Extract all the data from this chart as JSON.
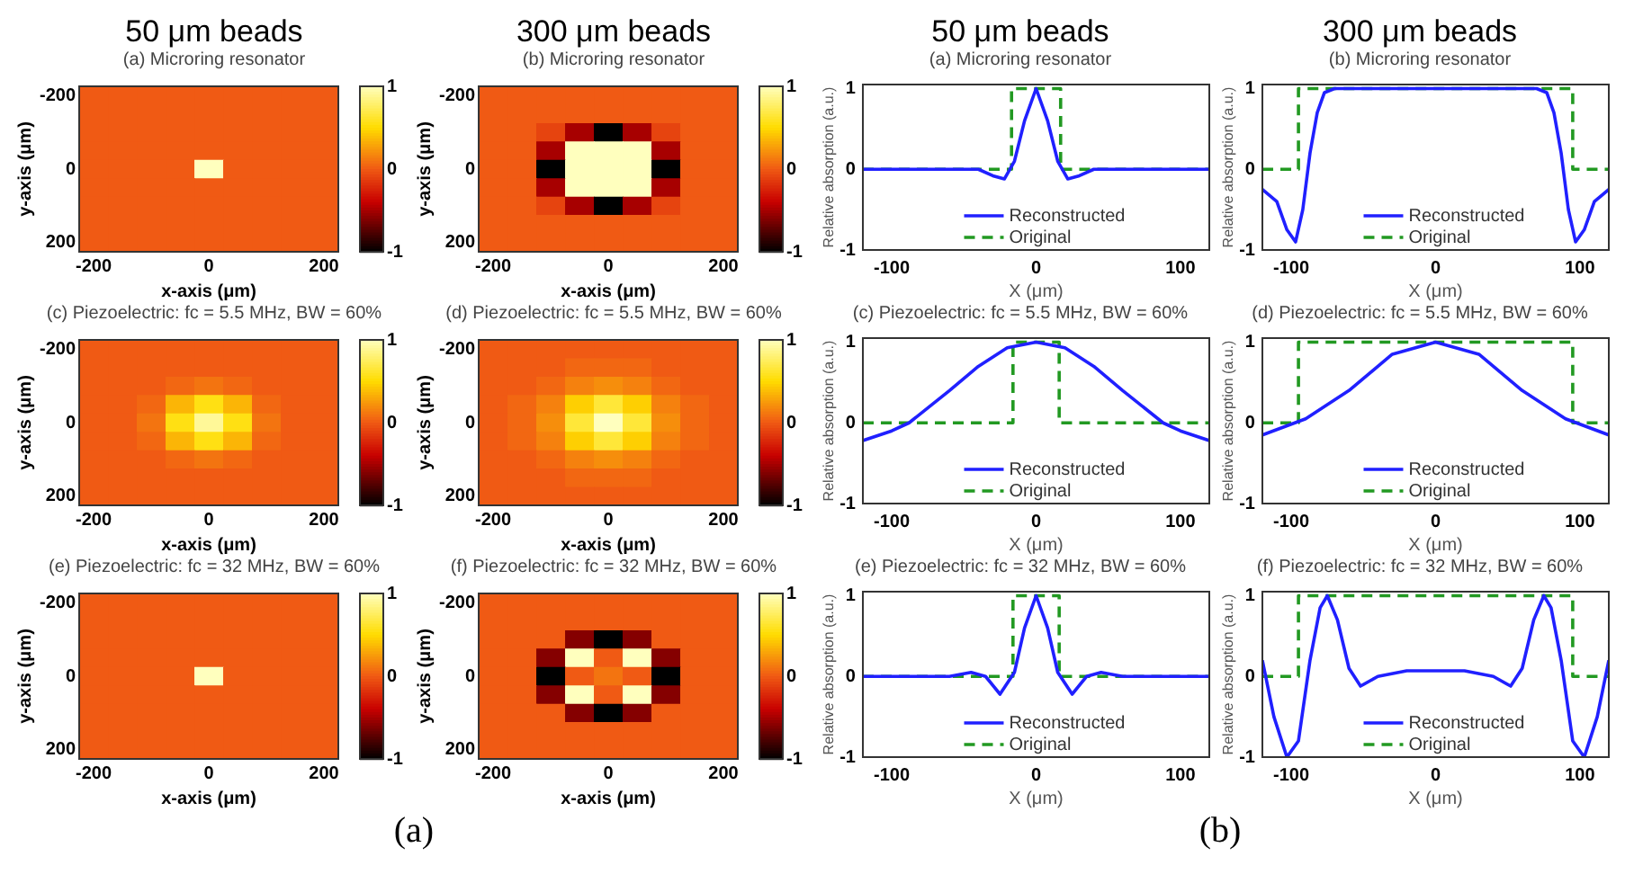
{
  "chart_data": [
    {
      "type": "heatmap",
      "title": "50 μm beads",
      "subtitle": "(a) Microring resonator",
      "xlabel": "x-axis (μm)",
      "ylabel": "y-axis (μm)",
      "categories": [
        "-200",
        null,
        null,
        null,
        "0",
        null,
        null,
        null,
        "200"
      ],
      "y_categories": [
        "-200",
        null,
        null,
        null,
        "0",
        null,
        null,
        null,
        "200"
      ],
      "clim": [
        -1,
        1
      ],
      "cticks": [
        -1,
        0,
        1
      ],
      "cells": [
        [
          0,
          0,
          0,
          0,
          0,
          0,
          0,
          0,
          0
        ],
        [
          0,
          0,
          0,
          0,
          0,
          0,
          0,
          0,
          0
        ],
        [
          0,
          0,
          0,
          0,
          0,
          0,
          0,
          0,
          0
        ],
        [
          0,
          0,
          0,
          0,
          0,
          0,
          0,
          0,
          0
        ],
        [
          0,
          0,
          0,
          0,
          1,
          0,
          0,
          0,
          0
        ],
        [
          0,
          0,
          0,
          0,
          0,
          0,
          0,
          0,
          0
        ],
        [
          0,
          0,
          0,
          0,
          0,
          0,
          0,
          0,
          0
        ],
        [
          0,
          0,
          0,
          0,
          0,
          0,
          0,
          0,
          0
        ],
        [
          0,
          0,
          0,
          0,
          0,
          0,
          0,
          0,
          0
        ]
      ]
    },
    {
      "type": "heatmap",
      "title": "300 μm beads",
      "subtitle": "(b) Microring resonator",
      "xlabel": "x-axis (μm)",
      "ylabel": "y-axis (μm)",
      "categories": [
        "-200",
        null,
        null,
        null,
        "0",
        null,
        null,
        null,
        "200"
      ],
      "y_categories": [
        "-200",
        null,
        null,
        null,
        "0",
        null,
        null,
        null,
        "200"
      ],
      "clim": [
        -1,
        1
      ],
      "cticks": [
        -1,
        0,
        1
      ],
      "cells": [
        [
          0,
          0,
          0,
          0,
          0,
          0,
          0,
          0,
          0
        ],
        [
          0,
          0,
          0,
          0,
          0,
          0,
          0,
          0,
          0
        ],
        [
          0,
          0,
          -0.1,
          -0.5,
          -1,
          -0.5,
          -0.1,
          0,
          0
        ],
        [
          0,
          0,
          -0.5,
          1,
          1,
          1,
          -0.5,
          0,
          0
        ],
        [
          0,
          0,
          -1,
          1,
          1,
          1,
          -1,
          0,
          0
        ],
        [
          0,
          0,
          -0.5,
          1,
          1,
          1,
          -0.5,
          0,
          0
        ],
        [
          0,
          0,
          -0.1,
          -0.5,
          -1,
          -0.5,
          -0.1,
          0,
          0
        ],
        [
          0,
          0,
          0,
          0,
          0,
          0,
          0,
          0,
          0
        ],
        [
          0,
          0,
          0,
          0,
          0,
          0,
          0,
          0,
          0
        ]
      ]
    },
    {
      "type": "heatmap",
      "title": "(c) Piezoelectric: fc = 5.5 MHz, BW = 60%",
      "xlabel": "x-axis (μm)",
      "ylabel": "y-axis (μm)",
      "categories": [
        "-200",
        null,
        null,
        null,
        "0",
        null,
        null,
        null,
        "200"
      ],
      "y_categories": [
        "-200",
        null,
        null,
        null,
        "0",
        null,
        null,
        null,
        "200"
      ],
      "clim": [
        -1,
        1
      ],
      "cticks": [
        -1,
        0,
        1
      ],
      "cells": [
        [
          0,
          0,
          0,
          0,
          0,
          0,
          0,
          0,
          0
        ],
        [
          0,
          0,
          0,
          0,
          0,
          0,
          0,
          0,
          0
        ],
        [
          0,
          0,
          0,
          0.05,
          0.1,
          0.05,
          0,
          0,
          0
        ],
        [
          0,
          0,
          0.05,
          0.35,
          0.55,
          0.35,
          0.05,
          0,
          0
        ],
        [
          0,
          0,
          0.1,
          0.55,
          0.9,
          0.55,
          0.1,
          0,
          0
        ],
        [
          0,
          0,
          0.05,
          0.35,
          0.55,
          0.35,
          0.05,
          0,
          0
        ],
        [
          0,
          0,
          0,
          0.05,
          0.1,
          0.05,
          0,
          0,
          0
        ],
        [
          0,
          0,
          0,
          0,
          0,
          0,
          0,
          0,
          0
        ],
        [
          0,
          0,
          0,
          0,
          0,
          0,
          0,
          0,
          0
        ]
      ]
    },
    {
      "type": "heatmap",
      "title": "(d) Piezoelectric: fc = 5.5 MHz, BW = 60%",
      "xlabel": "x-axis (μm)",
      "ylabel": "y-axis (μm)",
      "categories": [
        "-200",
        null,
        null,
        null,
        "0",
        null,
        null,
        null,
        "200"
      ],
      "y_categories": [
        "-200",
        null,
        null,
        null,
        "0",
        null,
        null,
        null,
        "200"
      ],
      "clim": [
        -1,
        1
      ],
      "cticks": [
        -1,
        0,
        1
      ],
      "cells": [
        [
          0,
          0,
          0,
          0,
          0,
          0,
          0,
          0,
          0
        ],
        [
          0,
          0,
          0,
          0.05,
          0.05,
          0.05,
          0,
          0,
          0
        ],
        [
          0,
          0,
          0.05,
          0.15,
          0.2,
          0.15,
          0.05,
          0,
          0
        ],
        [
          0,
          0.05,
          0.15,
          0.45,
          0.65,
          0.45,
          0.15,
          0.05,
          0
        ],
        [
          0,
          0.05,
          0.2,
          0.65,
          1,
          0.65,
          0.2,
          0.05,
          0
        ],
        [
          0,
          0.05,
          0.15,
          0.45,
          0.65,
          0.45,
          0.15,
          0.05,
          0
        ],
        [
          0,
          0,
          0.05,
          0.15,
          0.2,
          0.15,
          0.05,
          0,
          0
        ],
        [
          0,
          0,
          0,
          0.05,
          0.05,
          0.05,
          0,
          0,
          0
        ],
        [
          0,
          0,
          0,
          0,
          0,
          0,
          0,
          0,
          0
        ]
      ]
    },
    {
      "type": "heatmap",
      "title": "(e) Piezoelectric: fc = 32 MHz, BW = 60%",
      "xlabel": "x-axis (μm)",
      "ylabel": "y-axis (μm)",
      "categories": [
        "-200",
        null,
        null,
        null,
        "0",
        null,
        null,
        null,
        "200"
      ],
      "y_categories": [
        "-200",
        null,
        null,
        null,
        "0",
        null,
        null,
        null,
        "200"
      ],
      "clim": [
        -1,
        1
      ],
      "cticks": [
        -1,
        0,
        1
      ],
      "cells": [
        [
          0,
          0,
          0,
          0,
          0,
          0,
          0,
          0,
          0
        ],
        [
          0,
          0,
          0,
          0,
          0,
          0,
          0,
          0,
          0
        ],
        [
          0,
          0,
          0,
          0,
          0,
          0,
          0,
          0,
          0
        ],
        [
          0,
          0,
          0,
          0,
          0,
          0,
          0,
          0,
          0
        ],
        [
          0,
          0,
          0,
          0,
          1,
          0,
          0,
          0,
          0
        ],
        [
          0,
          0,
          0,
          0,
          0,
          0,
          0,
          0,
          0
        ],
        [
          0,
          0,
          0,
          0,
          0,
          0,
          0,
          0,
          0
        ],
        [
          0,
          0,
          0,
          0,
          0,
          0,
          0,
          0,
          0
        ],
        [
          0,
          0,
          0,
          0,
          0,
          0,
          0,
          0,
          0
        ]
      ]
    },
    {
      "type": "heatmap",
      "title": "(f) Piezoelectric: fc = 32 MHz, BW = 60%",
      "xlabel": "x-axis (μm)",
      "ylabel": "y-axis (μm)",
      "categories": [
        "-200",
        null,
        null,
        null,
        "0",
        null,
        null,
        null,
        "200"
      ],
      "y_categories": [
        "-200",
        null,
        null,
        null,
        "0",
        null,
        null,
        null,
        "200"
      ],
      "clim": [
        -1,
        1
      ],
      "cticks": [
        -1,
        0,
        1
      ],
      "annotations": [
        "(a)"
      ],
      "cells": [
        [
          0,
          0,
          0,
          0,
          0,
          0,
          0,
          0,
          0
        ],
        [
          0,
          0,
          0,
          0,
          0,
          0,
          0,
          0,
          0
        ],
        [
          0,
          0,
          0,
          -0.6,
          -1,
          -0.6,
          0,
          0,
          0
        ],
        [
          0,
          0,
          -0.6,
          1,
          0,
          1,
          -0.6,
          0,
          0
        ],
        [
          0,
          0,
          -1,
          0,
          0.1,
          0,
          -1,
          0,
          0
        ],
        [
          0,
          0,
          -0.6,
          1,
          0,
          1,
          -0.6,
          0,
          0
        ],
        [
          0,
          0,
          0,
          -0.6,
          -1,
          -0.6,
          0,
          0,
          0
        ],
        [
          0,
          0,
          0,
          0,
          0,
          0,
          0,
          0,
          0
        ],
        [
          0,
          0,
          0,
          0,
          0,
          0,
          0,
          0,
          0
        ]
      ]
    },
    {
      "type": "line",
      "title": "50 μm beads",
      "subtitle": "(a) Microring resonator",
      "xlabel": "X (μm)",
      "ylabel": "Relative absorption (a.u.)",
      "xlim": [
        -120,
        120
      ],
      "xticks": [
        -100,
        0,
        100
      ],
      "ylim": [
        -1,
        1.05
      ],
      "yticks": [
        -1,
        0,
        1
      ],
      "grid": false,
      "legend": "bottom",
      "marker": "none",
      "series": [
        {
          "name": "Reconstructed",
          "color": "#2020ff",
          "line_style": "solid",
          "x": [
            -120,
            -40,
            -30,
            -22,
            -15,
            -8,
            0,
            8,
            15,
            22,
            30,
            40,
            120
          ],
          "values": [
            0,
            0,
            -0.08,
            -0.12,
            0.1,
            0.6,
            1,
            0.6,
            0.1,
            -0.12,
            -0.08,
            0,
            0
          ]
        },
        {
          "name": "Original",
          "color": "#229922",
          "line_style": "dashed",
          "x": [
            -120,
            -17,
            -17,
            17,
            17,
            120
          ],
          "values": [
            0,
            0,
            1,
            1,
            0,
            0
          ]
        }
      ]
    },
    {
      "type": "line",
      "title": "300 μm beads",
      "subtitle": "(b) Microring resonator",
      "xlabel": "X (μm)",
      "ylabel": "Relative absorption (a.u.)",
      "xlim": [
        -120,
        120
      ],
      "xticks": [
        -100,
        0,
        100
      ],
      "ylim": [
        -1,
        1.05
      ],
      "yticks": [
        -1,
        0,
        1
      ],
      "grid": false,
      "legend": "bottom",
      "marker": "none",
      "series": [
        {
          "name": "Reconstructed",
          "color": "#2020ff",
          "line_style": "solid",
          "x": [
            -120,
            -110,
            -103,
            -97,
            -92,
            -87,
            -82,
            -77,
            -70,
            70,
            77,
            82,
            87,
            92,
            97,
            103,
            110,
            120
          ],
          "values": [
            -0.25,
            -0.4,
            -0.75,
            -0.9,
            -0.5,
            0.2,
            0.7,
            0.95,
            1,
            1,
            0.95,
            0.7,
            0.2,
            -0.5,
            -0.9,
            -0.75,
            -0.4,
            -0.25
          ]
        },
        {
          "name": "Original",
          "color": "#229922",
          "line_style": "dashed",
          "x": [
            -120,
            -95,
            -95,
            95,
            95,
            120
          ],
          "values": [
            0,
            0,
            1,
            1,
            0,
            0
          ]
        }
      ]
    },
    {
      "type": "line",
      "title": "(c) Piezoelectric: fc = 5.5 MHz, BW = 60%",
      "xlabel": "X (μm)",
      "ylabel": "Relative absorption (a.u.)",
      "xlim": [
        -120,
        120
      ],
      "xticks": [
        -100,
        0,
        100
      ],
      "ylim": [
        -1,
        1.05
      ],
      "yticks": [
        -1,
        0,
        1
      ],
      "grid": false,
      "legend": "bottom",
      "marker": "none",
      "series": [
        {
          "name": "Reconstructed",
          "color": "#2020ff",
          "line_style": "solid",
          "x": [
            -120,
            -100,
            -88,
            -60,
            -40,
            -20,
            0,
            20,
            40,
            60,
            88,
            100,
            120
          ],
          "values": [
            -0.22,
            -0.1,
            0,
            0.4,
            0.7,
            0.93,
            1,
            0.93,
            0.7,
            0.4,
            0,
            -0.1,
            -0.22
          ]
        },
        {
          "name": "Original",
          "color": "#229922",
          "line_style": "dashed",
          "x": [
            -120,
            -16,
            -16,
            16,
            16,
            120
          ],
          "values": [
            0,
            0,
            1,
            1,
            0,
            0
          ]
        }
      ]
    },
    {
      "type": "line",
      "title": "(d) Piezoelectric: fc = 5.5 MHz, BW = 60%",
      "xlabel": "X (μm)",
      "ylabel": "Relative absorption (a.u.)",
      "xlim": [
        -120,
        120
      ],
      "xticks": [
        -100,
        0,
        100
      ],
      "ylim": [
        -1,
        1.05
      ],
      "yticks": [
        -1,
        0,
        1
      ],
      "grid": false,
      "legend": "bottom",
      "marker": "none",
      "series": [
        {
          "name": "Reconstructed",
          "color": "#2020ff",
          "line_style": "solid",
          "x": [
            -120,
            -90,
            -60,
            -30,
            0,
            30,
            60,
            90,
            120
          ],
          "values": [
            -0.15,
            0.05,
            0.4,
            0.85,
            1,
            0.85,
            0.4,
            0.05,
            -0.15
          ]
        },
        {
          "name": "Original",
          "color": "#229922",
          "line_style": "dashed",
          "x": [
            -120,
            -95,
            -95,
            95,
            95,
            120
          ],
          "values": [
            0,
            0,
            1,
            1,
            0,
            0
          ]
        }
      ]
    },
    {
      "type": "line",
      "title": "(e) Piezoelectric: fc = 32 MHz, BW = 60%",
      "xlabel": "X (μm)",
      "ylabel": "Relative absorption (a.u.)",
      "xlim": [
        -120,
        120
      ],
      "xticks": [
        -100,
        0,
        100
      ],
      "ylim": [
        -1,
        1.05
      ],
      "yticks": [
        -1,
        0,
        1
      ],
      "grid": false,
      "legend": "bottom",
      "marker": "none",
      "series": [
        {
          "name": "Reconstructed",
          "color": "#2020ff",
          "line_style": "solid",
          "x": [
            -120,
            -60,
            -45,
            -35,
            -25,
            -15,
            -8,
            0,
            8,
            15,
            25,
            35,
            45,
            60,
            120
          ],
          "values": [
            0,
            0,
            0.05,
            0,
            -0.22,
            0.05,
            0.6,
            1,
            0.6,
            0.05,
            -0.22,
            0,
            0.05,
            0,
            0
          ]
        },
        {
          "name": "Original",
          "color": "#229922",
          "line_style": "dashed",
          "x": [
            -120,
            -16,
            -16,
            16,
            16,
            120
          ],
          "values": [
            0,
            0,
            1,
            1,
            0,
            0
          ]
        }
      ]
    },
    {
      "type": "line",
      "title": "(f) Piezoelectric: fc = 32 MHz, BW = 60%",
      "xlabel": "X (μm)",
      "ylabel": "Relative absorption (a.u.)",
      "xlim": [
        -120,
        120
      ],
      "xticks": [
        -100,
        0,
        100
      ],
      "ylim": [
        -1,
        1.05
      ],
      "yticks": [
        -1,
        0,
        1
      ],
      "grid": false,
      "legend": "bottom",
      "marker": "none",
      "annotations": [
        "(b)"
      ],
      "series": [
        {
          "name": "Reconstructed",
          "color": "#2020ff",
          "line_style": "solid",
          "x": [
            -120,
            -112,
            -103,
            -95,
            -87,
            -80,
            -75,
            -68,
            -60,
            -52,
            -40,
            -20,
            0,
            20,
            40,
            52,
            60,
            68,
            75,
            80,
            87,
            95,
            103,
            112,
            120
          ],
          "values": [
            0.2,
            -0.5,
            -1,
            -0.8,
            0.2,
            0.85,
            1,
            0.7,
            0.1,
            -0.12,
            0,
            0.07,
            0.07,
            0.07,
            0,
            -0.12,
            0.1,
            0.7,
            1,
            0.85,
            0.2,
            -0.8,
            -1,
            -0.5,
            0.2
          ]
        },
        {
          "name": "Original",
          "color": "#229922",
          "line_style": "dashed",
          "x": [
            -120,
            -95,
            -95,
            95,
            95,
            120
          ],
          "values": [
            0,
            0,
            1,
            1,
            0,
            0
          ]
        }
      ]
    }
  ]
}
